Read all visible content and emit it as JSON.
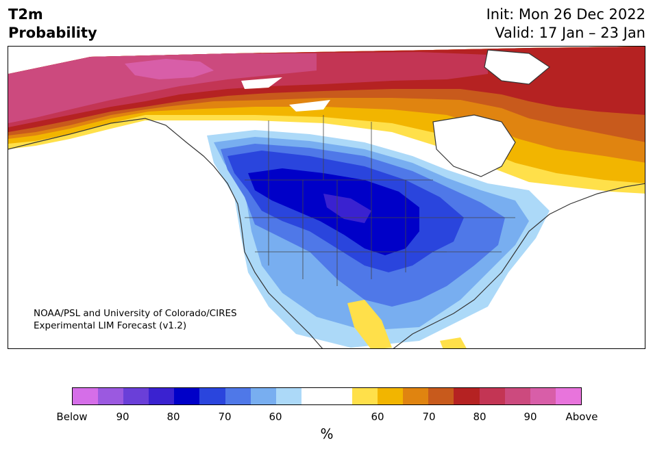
{
  "title": {
    "variable_line1": "T2m",
    "variable_line2": "Probability",
    "init": "Init: Mon 26 Dec 2022",
    "valid": "Valid: 17 Jan – 23 Jan"
  },
  "credit": {
    "line1": "NOAA/PSL and University of Colorado/CIRES",
    "line2": "Experimental LIM Forecast (v1.2)"
  },
  "colorbar": {
    "colors": [
      "#d56ee8",
      "#9b59e0",
      "#6a3fd8",
      "#3a22d0",
      "#0000c8",
      "#2a45dd",
      "#4f78e8",
      "#78aef0",
      "#acd9f8",
      "#ffffff",
      "#ffffff",
      "#ffe04a",
      "#f2b500",
      "#e08410",
      "#c85a1c",
      "#b52222",
      "#c33554",
      "#cc4a7e",
      "#d85ea8",
      "#e874dc"
    ],
    "tick_labels": [
      "Below",
      "90",
      "80",
      "70",
      "60",
      "60",
      "70",
      "80",
      "90",
      "Above"
    ],
    "unit": "%"
  },
  "legend_colors": {
    "below_strong": "#0000c8",
    "below_weak": "#acd9f8",
    "above_weak": "#ffe04a",
    "above_strong": "#b52222",
    "above_extreme": "#cc4a7e"
  }
}
